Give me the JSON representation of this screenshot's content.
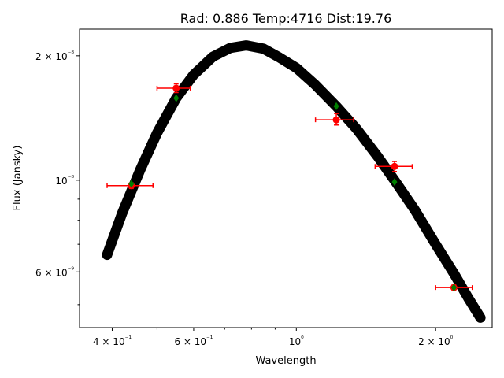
{
  "chart_data": {
    "type": "scatter",
    "title": "Rad: 0.886 Temp:4716 Dist:19.76",
    "xlabel": "Wavelength",
    "ylabel": "Flux (Jansky)",
    "xscale": "log",
    "yscale": "log",
    "xlim": [
      0.34,
      2.65
    ],
    "ylim": [
      4.4e-09,
      2.32e-08
    ],
    "grid": false,
    "x_ticks": [
      {
        "value": 0.4,
        "label": "4 × 10⁻¹"
      },
      {
        "value": 0.6,
        "label": "6 × 10⁻¹"
      },
      {
        "value": 1.0,
        "label": "10⁰"
      },
      {
        "value": 2.0,
        "label": "2 × 10⁰"
      }
    ],
    "y_ticks": [
      {
        "value": 6e-09,
        "label": "6 × 10⁻⁹"
      },
      {
        "value": 1e-08,
        "label": "10⁻⁸"
      },
      {
        "value": 2e-08,
        "label": "2 × 10⁻⁸"
      }
    ],
    "series": [
      {
        "kind": "model_curve",
        "color": "#000000",
        "x_range": [
          0.39,
          2.5
        ],
        "points": [
          [
            0.39,
            6.6e-09
          ],
          [
            0.42,
            8.3e-09
          ],
          [
            0.46,
            1.06e-08
          ],
          [
            0.5,
            1.3e-08
          ],
          [
            0.55,
            1.58e-08
          ],
          [
            0.6,
            1.8e-08
          ],
          [
            0.66,
            1.99e-08
          ],
          [
            0.72,
            2.09e-08
          ],
          [
            0.78,
            2.12e-08
          ],
          [
            0.85,
            2.08e-08
          ],
          [
            0.92,
            1.98e-08
          ],
          [
            1.0,
            1.87e-08
          ],
          [
            1.1,
            1.7e-08
          ],
          [
            1.22,
            1.51e-08
          ],
          [
            1.35,
            1.33e-08
          ],
          [
            1.5,
            1.14e-08
          ],
          [
            1.65,
            9.8e-09
          ],
          [
            1.8,
            8.5e-09
          ],
          [
            2.0,
            7e-09
          ],
          [
            2.2,
            5.9e-09
          ],
          [
            2.35,
            5.2e-09
          ],
          [
            2.5,
            4.65e-09
          ]
        ]
      },
      {
        "kind": "observed",
        "color": "#ff0000",
        "points": [
          {
            "x": 0.44,
            "y": 9.7e-09,
            "xerr": [
              0.39,
              0.49
            ],
            "yerr": [
              9.55e-09,
              9.85e-09
            ]
          },
          {
            "x": 0.55,
            "y": 1.67e-08,
            "xerr": [
              0.5,
              0.59
            ],
            "yerr": [
              1.63e-08,
              1.71e-08
            ]
          },
          {
            "x": 1.22,
            "y": 1.4e-08,
            "xerr": [
              1.1,
              1.33
            ],
            "yerr": [
              1.36e-08,
              1.45e-08
            ]
          },
          {
            "x": 1.63,
            "y": 1.08e-08,
            "xerr": [
              1.48,
              1.78
            ],
            "yerr": [
              1.05e-08,
              1.11e-08
            ]
          },
          {
            "x": 2.19,
            "y": 5.5e-09,
            "xerr": [
              2.0,
              2.4
            ],
            "yerr": [
              5.42e-09,
              5.58e-09
            ]
          }
        ]
      },
      {
        "kind": "model_at_bands",
        "color": "#008000",
        "points": [
          {
            "x": 0.44,
            "y": 9.8e-09
          },
          {
            "x": 0.55,
            "y": 1.58e-08
          },
          {
            "x": 1.22,
            "y": 1.51e-08
          },
          {
            "x": 1.63,
            "y": 9.9e-09
          },
          {
            "x": 2.19,
            "y": 5.5e-09
          }
        ]
      }
    ]
  }
}
